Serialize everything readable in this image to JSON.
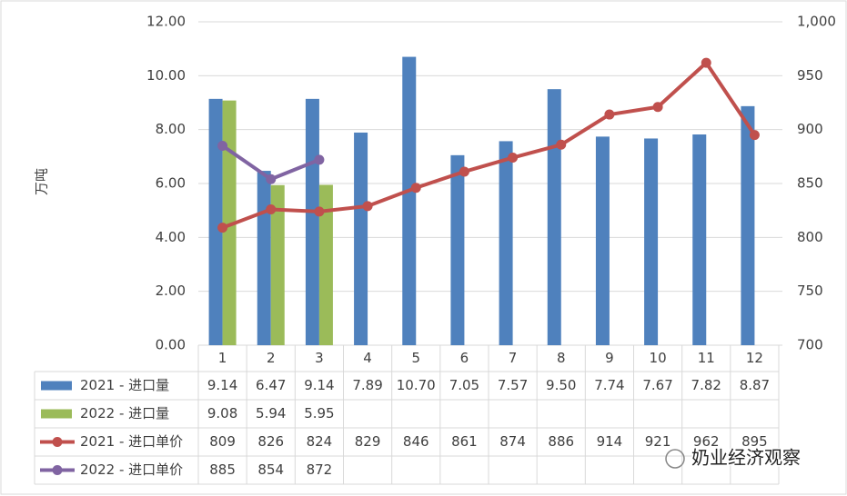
{
  "chart_data": {
    "type": "bar",
    "y_label": "万吨",
    "categories": [
      "1",
      "2",
      "3",
      "4",
      "5",
      "6",
      "7",
      "8",
      "9",
      "10",
      "11",
      "12"
    ],
    "series": [
      {
        "name": "2021 - 进口量",
        "type": "bar",
        "color": "#4f81bd",
        "values": [
          9.14,
          6.47,
          9.14,
          7.89,
          10.7,
          7.05,
          7.57,
          9.5,
          7.74,
          7.67,
          7.82,
          8.87
        ],
        "value_labels": [
          "9.14",
          "6.47",
          "9.14",
          "7.89",
          "10.70",
          "7.05",
          "7.57",
          "9.50",
          "7.74",
          "7.67",
          "7.82",
          "8.87"
        ]
      },
      {
        "name": "2022 - 进口量",
        "type": "bar",
        "color": "#9bbb59",
        "values": [
          9.08,
          5.94,
          5.95,
          null,
          null,
          null,
          null,
          null,
          null,
          null,
          null,
          null
        ],
        "value_labels": [
          "9.08",
          "5.94",
          "5.95",
          null,
          null,
          null,
          null,
          null,
          null,
          null,
          null,
          null
        ]
      },
      {
        "name": "2021 - 进口单价",
        "type": "line",
        "axis": "y2",
        "color": "#c0504d",
        "values": [
          809,
          826,
          824,
          829,
          846,
          861,
          874,
          886,
          914,
          921,
          962,
          895
        ]
      },
      {
        "name": "2022 - 进口单价",
        "type": "line",
        "axis": "y2",
        "color": "#8064a2",
        "values": [
          885,
          854,
          872,
          null,
          null,
          null,
          null,
          null,
          null,
          null,
          null,
          null
        ]
      }
    ],
    "ylim": [
      0,
      12
    ],
    "yticks": [
      {
        "value": 0,
        "label": "0.00"
      },
      {
        "value": 2,
        "label": "2.00"
      },
      {
        "value": 4,
        "label": "4.00"
      },
      {
        "value": 6,
        "label": "6.00"
      },
      {
        "value": 8,
        "label": "8.00"
      },
      {
        "value": 10,
        "label": "10.00"
      },
      {
        "value": 12,
        "label": "12.00"
      }
    ],
    "y2lim": [
      700,
      1000
    ],
    "y2ticks": [
      700,
      750,
      800,
      850,
      900,
      950,
      {
        "value": 1000,
        "label": "1,000"
      }
    ],
    "grid": true,
    "watermark": "奶业经济观察"
  }
}
